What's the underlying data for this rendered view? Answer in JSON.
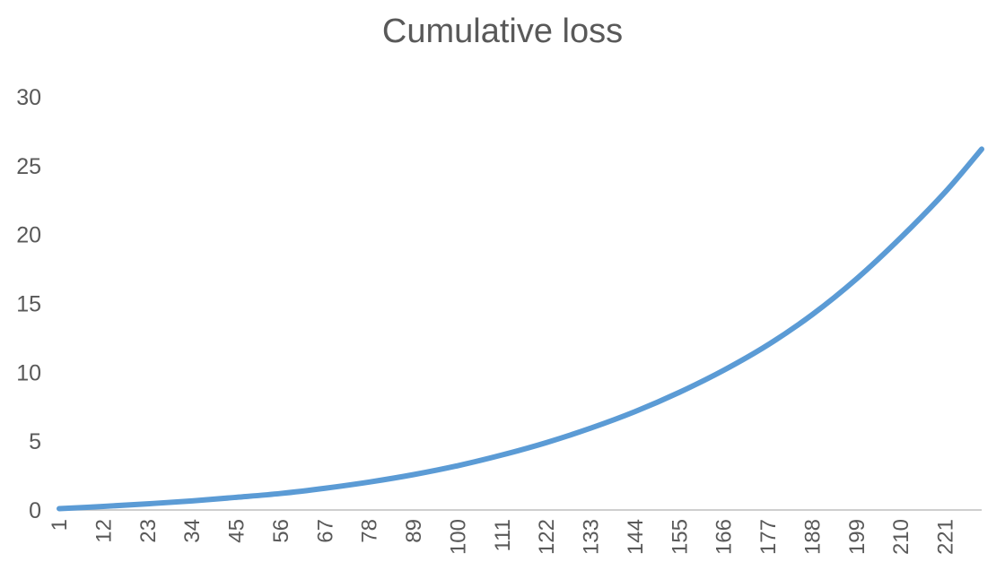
{
  "chart_data": {
    "type": "line",
    "title": "Cumulative loss",
    "xlabel": "",
    "ylabel": "",
    "x_range": [
      1,
      230
    ],
    "ylim": [
      0,
      30
    ],
    "y_ticks": [
      0,
      5,
      10,
      15,
      20,
      25,
      30
    ],
    "x_ticks": [
      1,
      12,
      23,
      34,
      45,
      56,
      67,
      78,
      89,
      100,
      111,
      122,
      133,
      144,
      155,
      166,
      177,
      188,
      199,
      210,
      221
    ],
    "grid": false,
    "legend": "none",
    "series": [
      {
        "color": "#5b9bd5",
        "points": [
          [
            1,
            0.1
          ],
          [
            12,
            0.26
          ],
          [
            23,
            0.45
          ],
          [
            34,
            0.66
          ],
          [
            45,
            0.92
          ],
          [
            56,
            1.2
          ],
          [
            67,
            1.58
          ],
          [
            78,
            2.03
          ],
          [
            89,
            2.57
          ],
          [
            100,
            3.22
          ],
          [
            111,
            4.0
          ],
          [
            122,
            4.9
          ],
          [
            133,
            5.95
          ],
          [
            144,
            7.15
          ],
          [
            155,
            8.55
          ],
          [
            166,
            10.15
          ],
          [
            177,
            12.0
          ],
          [
            188,
            14.2
          ],
          [
            199,
            16.8
          ],
          [
            210,
            19.8
          ],
          [
            221,
            23.1
          ],
          [
            230,
            26.2
          ]
        ]
      }
    ],
    "colors": {
      "axis": "#bfbfbf",
      "text": "#595959"
    }
  }
}
